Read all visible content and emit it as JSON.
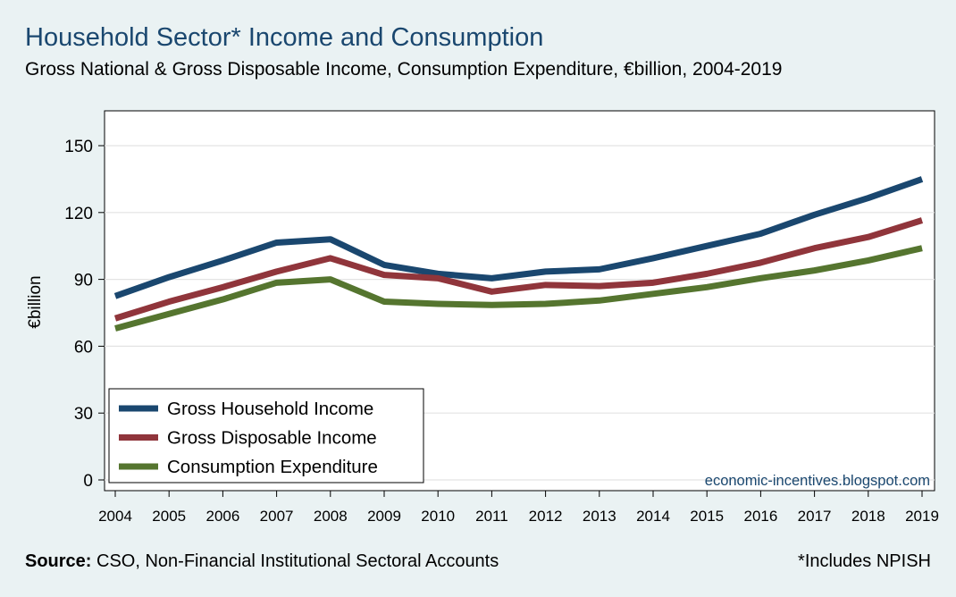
{
  "title": "Household Sector* Income and Consumption",
  "subtitle": "Gross National & Gross Disposable Income, Consumption Expenditure, €billion, 2004-2019",
  "footer": {
    "source_label": "Source:",
    "source_text": " CSO, Non-Financial Institutional Sectoral Accounts",
    "note": "*Includes NPISH"
  },
  "chart_data": {
    "type": "line",
    "x": [
      2004,
      2005,
      2006,
      2007,
      2008,
      2009,
      2010,
      2011,
      2012,
      2013,
      2014,
      2015,
      2016,
      2017,
      2018,
      2019
    ],
    "ylabel": "€billion",
    "xlabel": "",
    "ylim": [
      0,
      150
    ],
    "yticks": [
      0,
      30,
      60,
      90,
      120,
      150
    ],
    "grid": true,
    "legend_position": "bottom-left",
    "watermark": "economic-incentives.blogspot.com",
    "series": [
      {
        "name": "Gross Household Income",
        "color": "#1a476f",
        "values": [
          82.5,
          91,
          98.5,
          106.5,
          108,
          96.5,
          92.5,
          90.5,
          93.5,
          94.5,
          99.5,
          105,
          110.5,
          119,
          126.5,
          135
        ]
      },
      {
        "name": "Gross Disposable Income",
        "color": "#90353b",
        "values": [
          72.5,
          80,
          86.5,
          93.5,
          99.5,
          92,
          90.5,
          84.5,
          87.5,
          87,
          88.5,
          92.5,
          97.5,
          104,
          109,
          116.5
        ]
      },
      {
        "name": "Consumption Expenditure",
        "color": "#55752f",
        "values": [
          68,
          74.5,
          81,
          88.5,
          90,
          80,
          79,
          78.5,
          79,
          80.5,
          83.5,
          86.5,
          90.5,
          94,
          98.5,
          104
        ]
      }
    ]
  }
}
